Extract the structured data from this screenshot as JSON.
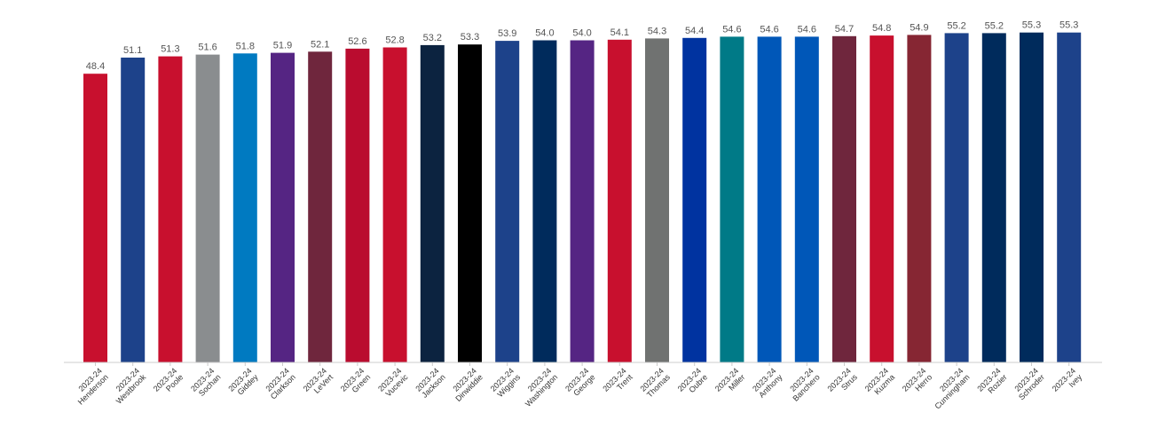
{
  "chart_data": {
    "type": "bar",
    "title": "",
    "xlabel": "",
    "ylabel": "",
    "ylim": [
      0,
      56
    ],
    "grid": false,
    "legend": "none",
    "categories": [
      {
        "season": "2023-24",
        "player": "Henderson"
      },
      {
        "season": "2023-24",
        "player": "Westbrook"
      },
      {
        "season": "2023-24",
        "player": "Poole"
      },
      {
        "season": "2023-24",
        "player": "Sochan"
      },
      {
        "season": "2023-24",
        "player": "Giddey"
      },
      {
        "season": "2023-24",
        "player": "Clarkson"
      },
      {
        "season": "2023-24",
        "player": "LeVert"
      },
      {
        "season": "2023-24",
        "player": "Green"
      },
      {
        "season": "2023-24",
        "player": "Vucevic"
      },
      {
        "season": "2023-24",
        "player": "Jackson"
      },
      {
        "season": "2023-24",
        "player": "Dinwiddie"
      },
      {
        "season": "2023-24",
        "player": "Wiggins"
      },
      {
        "season": "2023-24",
        "player": "Washington"
      },
      {
        "season": "2023-24",
        "player": "George"
      },
      {
        "season": "2023-24",
        "player": "Trent"
      },
      {
        "season": "2023-24",
        "player": "Thomas"
      },
      {
        "season": "2023-24",
        "player": "Oubre"
      },
      {
        "season": "2023-24",
        "player": "Miller"
      },
      {
        "season": "2023-24",
        "player": "Anthony"
      },
      {
        "season": "2023-24",
        "player": "Banchero"
      },
      {
        "season": "2023-24",
        "player": "Strus"
      },
      {
        "season": "2023-24",
        "player": "Kuzma"
      },
      {
        "season": "2023-24",
        "player": "Herro"
      },
      {
        "season": "2023-24",
        "player": "Cunningham"
      },
      {
        "season": "2023-24",
        "player": "Rozier"
      },
      {
        "season": "2023-24",
        "player": "Schroder"
      },
      {
        "season": "2023-24",
        "player": "Ivey"
      }
    ],
    "values": [
      48.4,
      51.1,
      51.3,
      51.6,
      51.8,
      51.9,
      52.1,
      52.6,
      52.8,
      53.2,
      53.3,
      53.9,
      54.0,
      54.0,
      54.1,
      54.3,
      54.4,
      54.6,
      54.6,
      54.6,
      54.7,
      54.8,
      54.9,
      55.2,
      55.2,
      55.3,
      55.3
    ],
    "value_labels": [
      "48.4",
      "51.1",
      "51.3",
      "51.6",
      "51.8",
      "51.9",
      "52.1",
      "52.6",
      "52.8",
      "53.2",
      "53.3",
      "53.9",
      "54.0",
      "54.0",
      "54.1",
      "54.3",
      "54.4",
      "54.6",
      "54.6",
      "54.6",
      "54.7",
      "54.8",
      "54.9",
      "55.2",
      "55.2",
      "55.3",
      "55.3"
    ],
    "colors": [
      "#C8102E",
      "#1D428A",
      "#C8102E",
      "#8A8D8F",
      "#007AC1",
      "#552583",
      "#6F263D",
      "#BA0C2F",
      "#C8102E",
      "#0C2340",
      "#000000",
      "#1D428A",
      "#002B5C",
      "#552583",
      "#C8102E",
      "#707271",
      "#0033A0",
      "#007A87",
      "#0057B8",
      "#0057B8",
      "#6F263D",
      "#C8102E",
      "#862633",
      "#1D428A",
      "#002B5C",
      "#002B5C",
      "#1D428A"
    ]
  }
}
